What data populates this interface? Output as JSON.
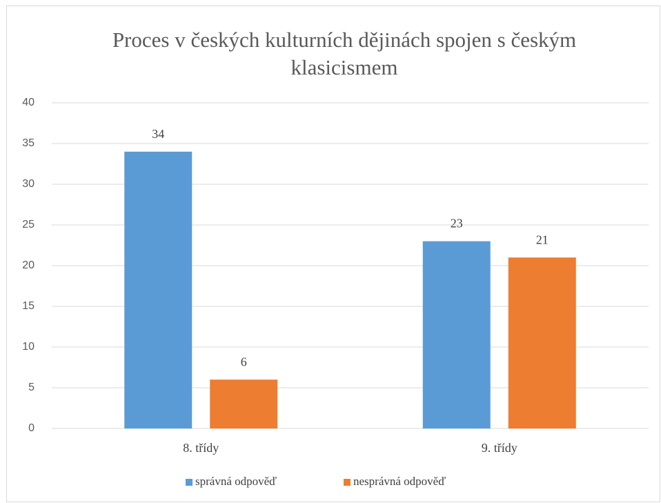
{
  "chart_data": {
    "type": "bar",
    "title": "Proces v českých kulturních dějinách spojen s českým klasicismem",
    "categories": [
      "8. třídy",
      "9. třídy"
    ],
    "series": [
      {
        "name": "správná odpověď",
        "color": "#5b9bd5",
        "values": [
          34,
          23
        ]
      },
      {
        "name": "nesprávná odpověď",
        "color": "#ed7d31",
        "values": [
          6,
          21
        ]
      }
    ],
    "ylim": [
      0,
      40
    ],
    "yticks": [
      0,
      5,
      10,
      15,
      20,
      25,
      30,
      35,
      40
    ],
    "grid": true,
    "legend": "bottom"
  }
}
